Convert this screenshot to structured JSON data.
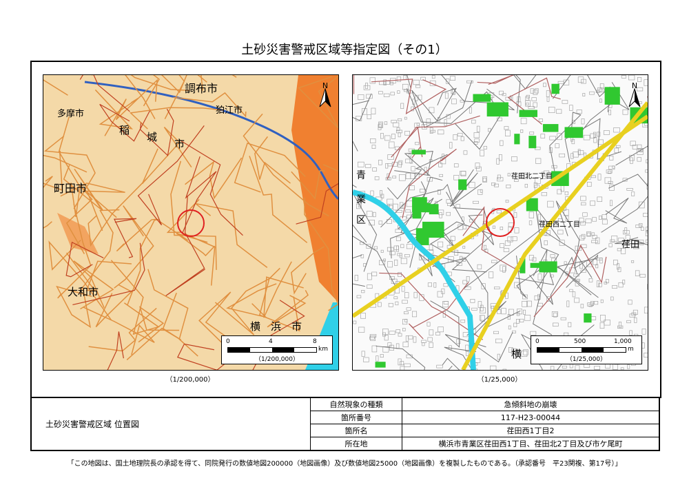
{
  "title": "土砂災害警戒区域等指定図（その1）",
  "maps": {
    "overview": {
      "caption": "（1/200,000）",
      "scale": {
        "ticks": [
          "0",
          "4",
          "8"
        ],
        "unit": "km",
        "ratio": "（1/200,000）"
      },
      "labels": [
        "調布市",
        "狛江市",
        "多摩市",
        "稲",
        "城",
        "市",
        "町田市",
        "大和市",
        "横",
        "浜",
        "市"
      ],
      "north": "N"
    },
    "detail": {
      "caption": "（1/25,000）",
      "scale": {
        "ticks": [
          "0",
          "500",
          "1,000"
        ],
        "unit": "m",
        "ratio": "（1/25,000）"
      },
      "labels": [
        "荏田西二丁目",
        "荏田北二丁目",
        "荏田",
        "青",
        "業",
        "区",
        "横"
      ],
      "north": "N"
    }
  },
  "info": {
    "section_title": "土砂災害警戒区域 位置図",
    "rows": [
      {
        "key": "自然現象の種類",
        "value": "急傾斜地の崩壊"
      },
      {
        "key": "箇所番号",
        "value": "117-H23-00044"
      },
      {
        "key": "箇所名",
        "value": "荏田西1丁目2"
      },
      {
        "key": "所在地",
        "value": "横浜市青業区荏田西1丁目、荏田北2丁目及び市ケ尾町"
      }
    ]
  },
  "footer": "「この地図は、国土地理院長の承認を得て、同院発行の数値地図200000（地図画像）及び数値地図25000（地図画像）を複製したものである。（承認番号　平23関複、第17号）」",
  "colors": {
    "marker": "#e02020",
    "overview_bg": "#f4d9a8",
    "urban": "#f08030",
    "water": "#30d0e8",
    "green": "#30c830",
    "highway": "#e8d020"
  }
}
